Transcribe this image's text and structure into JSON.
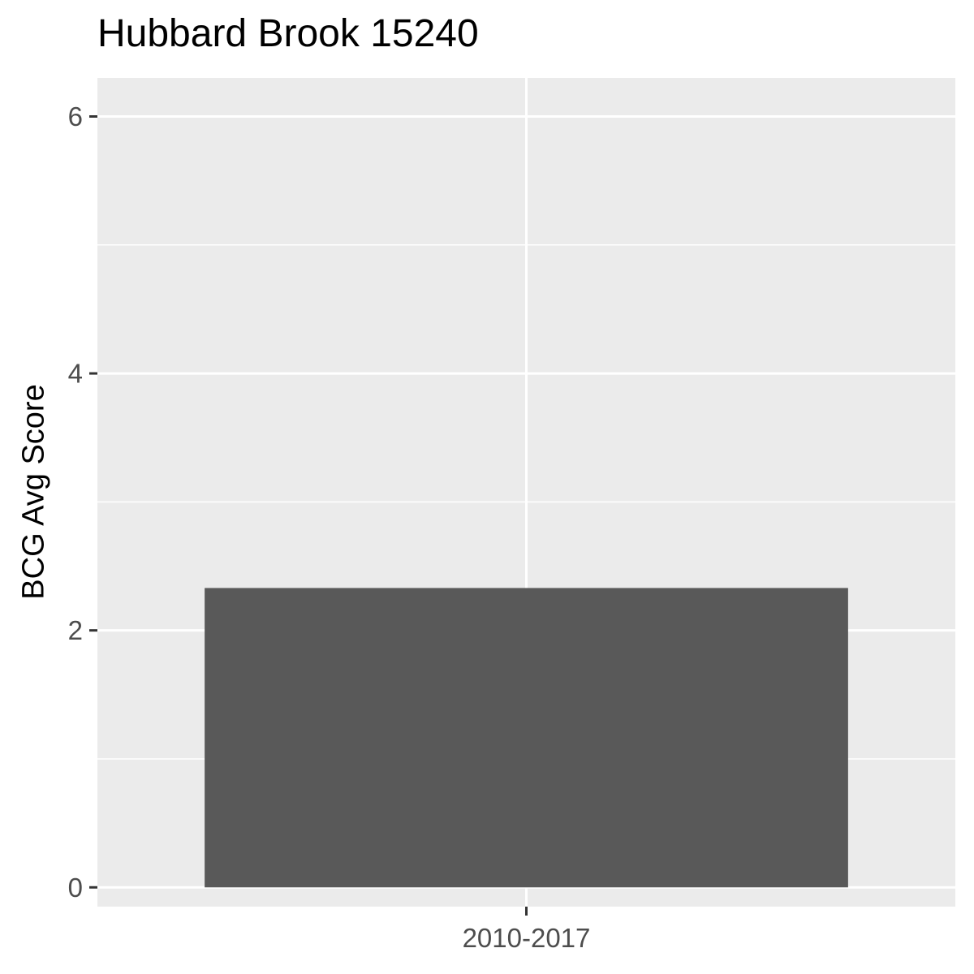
{
  "chart_data": {
    "type": "bar",
    "title": "Hubbard Brook 15240",
    "xlabel": "",
    "ylabel": "BCG Avg Score",
    "categories": [
      "2010-2017"
    ],
    "values": [
      2.33
    ],
    "ylim": [
      -0.15,
      6.3
    ],
    "y_ticks": [
      "0",
      "2",
      "4",
      "6"
    ],
    "grid": true,
    "legend": "none",
    "colors": {
      "panel": "#ebebeb",
      "grid": "#ffffff",
      "bar": "#595959",
      "tick_text": "#4d4d4d",
      "tick_mark": "#333333"
    }
  }
}
